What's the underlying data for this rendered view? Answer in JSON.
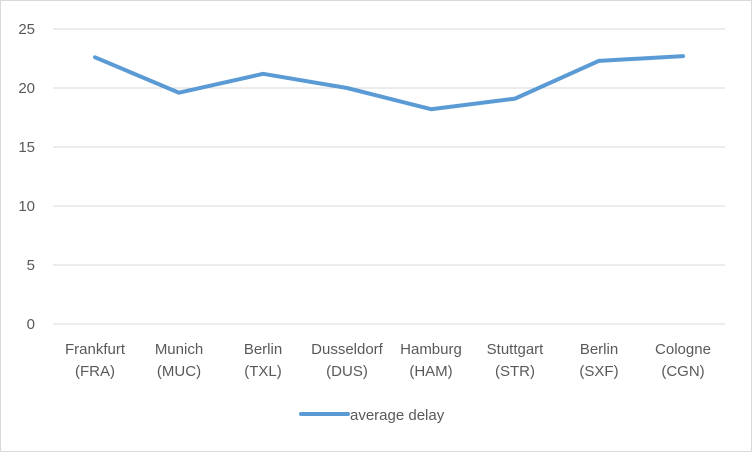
{
  "chart_data": {
    "type": "line",
    "title": "",
    "xlabel": "",
    "ylabel": "",
    "categories": [
      [
        "Frankfurt",
        "(FRA)"
      ],
      [
        "Munich",
        "(MUC)"
      ],
      [
        "Berlin",
        "(TXL)"
      ],
      [
        "Dusseldorf",
        "(DUS)"
      ],
      [
        "Hamburg",
        "(HAM)"
      ],
      [
        "Stuttgart",
        "(STR)"
      ],
      [
        "Berlin",
        "(SXF)"
      ],
      [
        "Cologne",
        "(CGN)"
      ]
    ],
    "series": [
      {
        "name": "average delay",
        "color": "#5b9bd5",
        "values": [
          22.6,
          19.6,
          21.2,
          20.0,
          18.2,
          19.1,
          22.3,
          22.7
        ]
      }
    ],
    "ylim": [
      0,
      25
    ],
    "yticks": [
      0,
      5,
      10,
      15,
      20,
      25
    ],
    "grid": true,
    "gridColor": "#d9d9d9",
    "legend": "bottom"
  }
}
